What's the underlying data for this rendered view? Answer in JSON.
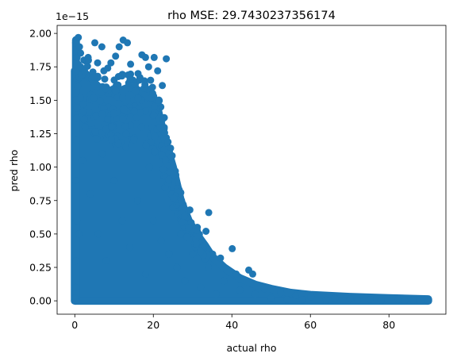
{
  "chart_data": {
    "type": "scatter",
    "title": "rho MSE: 29.7430237356174",
    "xlabel": "actual rho",
    "ylabel": "pred rho",
    "y_scale_label": "1e−15",
    "xlim": [
      -4.5,
      94.5
    ],
    "ylim": [
      -0.1,
      2.06
    ],
    "x_ticks": [
      0,
      20,
      40,
      60,
      80
    ],
    "x_tick_labels": [
      "0",
      "20",
      "40",
      "60",
      "80"
    ],
    "y_ticks": [
      0.0,
      0.25,
      0.5,
      0.75,
      1.0,
      1.25,
      1.5,
      1.75,
      2.0
    ],
    "y_tick_labels": [
      "0.00",
      "0.25",
      "0.50",
      "0.75",
      "1.00",
      "1.25",
      "1.50",
      "1.75",
      "2.00"
    ],
    "grid": false,
    "legend": "none",
    "marker_color": "#1f77b4",
    "series": [
      {
        "points": [
          [
            0.2,
            1.93
          ],
          [
            0.9,
            1.97
          ],
          [
            1.2,
            1.9
          ],
          [
            0.6,
            1.82
          ],
          [
            1.5,
            1.75
          ],
          [
            2.3,
            1.8
          ],
          [
            2.5,
            1.7
          ],
          [
            3.4,
            1.82
          ],
          [
            4.3,
            1.66
          ],
          [
            5.1,
            1.93
          ],
          [
            5.8,
            1.78
          ],
          [
            6.9,
            1.9
          ],
          [
            7.4,
            1.72
          ],
          [
            8.4,
            1.74
          ],
          [
            9.2,
            1.78
          ],
          [
            9.8,
            1.58
          ],
          [
            10.4,
            1.83
          ],
          [
            11.3,
            1.9
          ],
          [
            12.3,
            1.95
          ],
          [
            13.4,
            1.93
          ],
          [
            14.2,
            1.77
          ],
          [
            15.5,
            1.63
          ],
          [
            16.1,
            1.7
          ],
          [
            17.1,
            1.84
          ],
          [
            18.0,
            1.82
          ],
          [
            18.8,
            1.75
          ],
          [
            19.3,
            1.65
          ],
          [
            20.2,
            1.82
          ],
          [
            21.1,
            1.72
          ],
          [
            22.3,
            1.61
          ],
          [
            23.3,
            1.81
          ],
          [
            21.9,
            1.45
          ],
          [
            22.8,
            1.37
          ],
          [
            23.3,
            1.22
          ],
          [
            24.1,
            1.13
          ],
          [
            25.6,
            0.97
          ],
          [
            26.6,
            0.83
          ],
          [
            27.6,
            0.72
          ],
          [
            28.4,
            0.63
          ],
          [
            29.3,
            0.68
          ],
          [
            31.2,
            0.55
          ],
          [
            34.1,
            0.66
          ],
          [
            33.4,
            0.52
          ],
          [
            35.1,
            0.35
          ],
          [
            37.1,
            0.32
          ],
          [
            40.1,
            0.39
          ],
          [
            41.1,
            0.2
          ],
          [
            44.3,
            0.23
          ],
          [
            45.3,
            0.2
          ],
          [
            48.3,
            0.09
          ],
          [
            52.4,
            0.06
          ],
          [
            56.2,
            0.04
          ],
          [
            60.1,
            0.03
          ],
          [
            66.2,
            0.02
          ],
          [
            70.1,
            0.015
          ],
          [
            75.2,
            0.01
          ],
          [
            82.3,
            0.01
          ],
          [
            86.2,
            0.005
          ],
          [
            90.0,
            0.0
          ],
          [
            0.0,
            0.02
          ],
          [
            0.1,
            0.1
          ],
          [
            0.3,
            0.3
          ],
          [
            0.5,
            0.6
          ],
          [
            0.2,
            0.9
          ],
          [
            0.4,
            1.2
          ],
          [
            0.3,
            1.5
          ],
          [
            1.0,
            0.5
          ],
          [
            2.0,
            1.05
          ],
          [
            3.0,
            1.4
          ],
          [
            4.0,
            0.8
          ],
          [
            5.0,
            1.25
          ],
          [
            6.0,
            0.5
          ],
          [
            7.0,
            1.1
          ],
          [
            8.0,
            0.3
          ],
          [
            9.0,
            1.3
          ],
          [
            10.0,
            0.9
          ],
          [
            11.0,
            1.4
          ],
          [
            12.0,
            0.6
          ],
          [
            13.0,
            1.15
          ],
          [
            14.0,
            0.4
          ],
          [
            15.0,
            1.5
          ],
          [
            16.0,
            0.75
          ],
          [
            17.0,
            1.3
          ],
          [
            18.0,
            0.2
          ],
          [
            19.0,
            1.0
          ],
          [
            20.0,
            0.6
          ],
          [
            21.0,
            1.25
          ],
          [
            22.0,
            0.45
          ],
          [
            23.0,
            0.85
          ],
          [
            24.0,
            0.35
          ],
          [
            25.0,
            0.7
          ],
          [
            26.0,
            0.25
          ],
          [
            27.0,
            0.5
          ],
          [
            28.0,
            0.15
          ],
          [
            30.0,
            0.35
          ],
          [
            32.0,
            0.1
          ],
          [
            34.0,
            0.25
          ],
          [
            36.0,
            0.05
          ],
          [
            38.0,
            0.15
          ],
          [
            42.0,
            0.08
          ],
          [
            46.0,
            0.05
          ],
          [
            50.0,
            0.02
          ],
          [
            54.0,
            0.01
          ],
          [
            58.0,
            0.01
          ],
          [
            64.0,
            0.005
          ],
          [
            72.0,
            0.004
          ],
          [
            78.0,
            0.003
          ],
          [
            84.0,
            0.002
          ],
          [
            88.0,
            0.001
          ]
        ]
      }
    ]
  }
}
